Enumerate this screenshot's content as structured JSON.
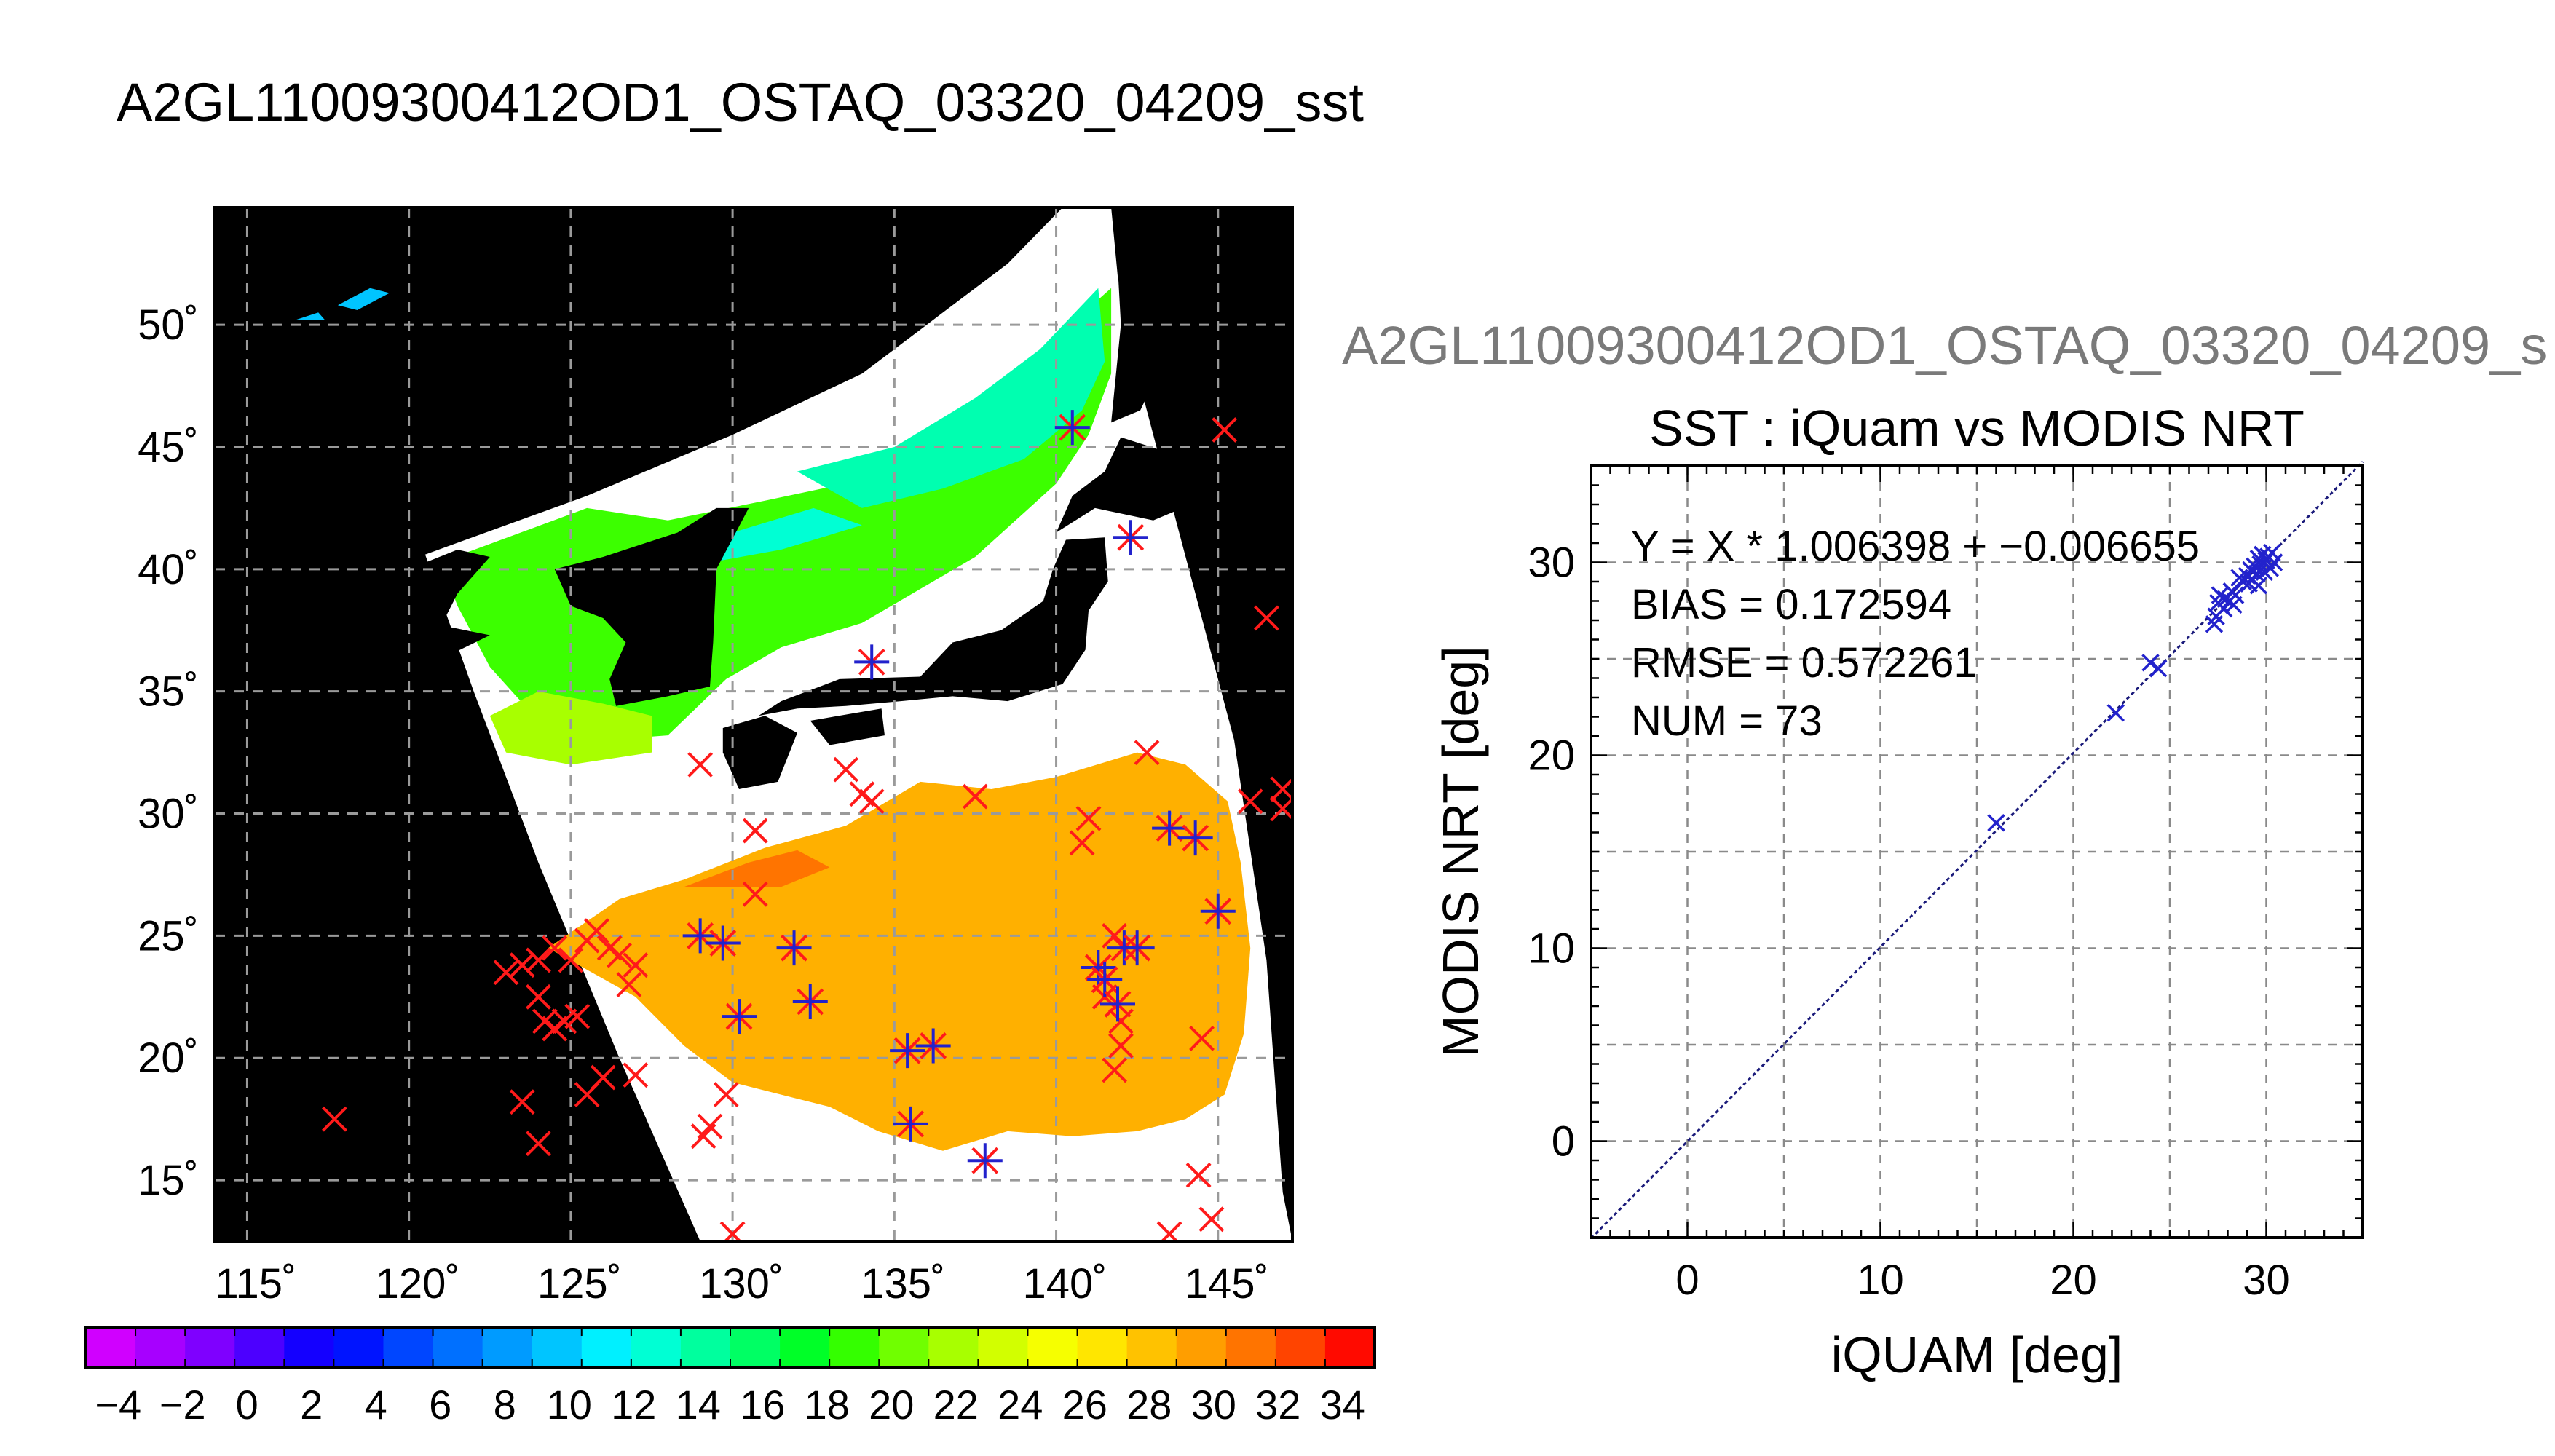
{
  "main_title": "A2GL11009300412OD1_OSTAQ_03320_04209_sst",
  "sub_title": "A2GL11009300412OD1_OSTAQ_03320_04209_s",
  "colors": {
    "land_and_no_data": "#000000",
    "cloud": "#ffffff",
    "iquam_marker": "#ff1a1a",
    "matched_marker": "#2222cc",
    "fit_line": "#1a1a7a"
  },
  "chart_data": [
    {
      "type": "map",
      "title": "",
      "lon_range": [
        114,
        147.3
      ],
      "lat_range": [
        12.5,
        54.8
      ],
      "lon_ticks": [
        115,
        120,
        125,
        130,
        135,
        140,
        145
      ],
      "lat_ticks": [
        15,
        20,
        25,
        30,
        35,
        40,
        45,
        50
      ],
      "lon_tick_labels": [
        "115˚",
        "120˚",
        "125˚",
        "130˚",
        "135˚",
        "140˚",
        "145˚"
      ],
      "lat_tick_labels": [
        "15˚",
        "20˚",
        "25˚",
        "30˚",
        "35˚",
        "40˚",
        "45˚",
        "50˚"
      ],
      "grid": true,
      "iquam_points": [
        [
          117.7,
          17.5
        ],
        [
          123.0,
          23.5
        ],
        [
          123.5,
          23.8
        ],
        [
          124.0,
          22.5
        ],
        [
          124.2,
          21.5
        ],
        [
          124.5,
          21.2
        ],
        [
          124.8,
          21.5
        ],
        [
          125.2,
          21.7
        ],
        [
          124.0,
          24.0
        ],
        [
          124.5,
          24.5
        ],
        [
          125.0,
          24.0
        ],
        [
          125.5,
          24.8
        ],
        [
          125.8,
          25.2
        ],
        [
          126.2,
          24.5
        ],
        [
          126.5,
          24.2
        ],
        [
          127.0,
          23.8
        ],
        [
          126.8,
          23.0
        ],
        [
          126.0,
          19.2
        ],
        [
          125.5,
          18.5
        ],
        [
          127.0,
          19.3
        ],
        [
          123.5,
          18.2
        ],
        [
          124.0,
          16.5
        ],
        [
          129.1,
          16.8
        ],
        [
          129.3,
          17.2
        ],
        [
          129.8,
          18.5
        ],
        [
          130.0,
          12.8
        ],
        [
          129.0,
          32.0
        ],
        [
          130.7,
          29.3
        ],
        [
          130.7,
          26.7
        ],
        [
          134.0,
          30.8
        ],
        [
          134.3,
          30.5
        ],
        [
          133.5,
          31.8
        ],
        [
          137.5,
          30.7
        ],
        [
          141.0,
          29.8
        ],
        [
          140.8,
          28.8
        ],
        [
          142.8,
          32.5
        ],
        [
          146.0,
          30.5
        ],
        [
          147.0,
          31.0
        ],
        [
          147.0,
          30.2
        ],
        [
          146.5,
          38.0
        ],
        [
          145.2,
          45.7
        ],
        [
          144.5,
          20.8
        ],
        [
          144.4,
          15.2
        ],
        [
          144.8,
          13.4
        ],
        [
          143.5,
          12.8
        ],
        [
          142.0,
          20.5
        ],
        [
          141.8,
          19.5
        ],
        [
          142.0,
          21.5
        ],
        [
          141.5,
          22.5
        ],
        [
          141.8,
          25.0
        ]
      ],
      "matched_points": [
        [
          129.0,
          25.0
        ],
        [
          129.7,
          24.7
        ],
        [
          130.2,
          21.7
        ],
        [
          131.9,
          24.5
        ],
        [
          132.4,
          22.3
        ],
        [
          134.3,
          36.2
        ],
        [
          135.4,
          20.3
        ],
        [
          136.2,
          20.5
        ],
        [
          135.5,
          17.3
        ],
        [
          137.8,
          15.8
        ],
        [
          140.5,
          45.8
        ],
        [
          142.3,
          41.3
        ],
        [
          141.3,
          23.7
        ],
        [
          141.5,
          23.2
        ],
        [
          142.1,
          24.5
        ],
        [
          142.5,
          24.5
        ],
        [
          141.9,
          22.2
        ],
        [
          143.5,
          29.4
        ],
        [
          144.3,
          29.0
        ],
        [
          145.0,
          26.0
        ]
      ]
    },
    {
      "type": "colorbar",
      "range": [
        -5,
        35
      ],
      "tick_labels": [
        "−4",
        "−2",
        "0",
        "2",
        "4",
        "6",
        "8",
        "10",
        "12",
        "14",
        "16",
        "18",
        "20",
        "22",
        "24",
        "26",
        "28",
        "30",
        "32",
        "34"
      ],
      "tick_values": [
        -4,
        -2,
        0,
        2,
        4,
        6,
        8,
        10,
        12,
        14,
        16,
        18,
        20,
        22,
        24,
        26,
        28,
        30,
        32,
        34
      ],
      "colors": [
        "#d000ff",
        "#a700ff",
        "#7f00ff",
        "#4c00ff",
        "#1400ff",
        "#0014ff",
        "#0046ff",
        "#0070ff",
        "#009bff",
        "#00c5ff",
        "#00f0ff",
        "#00ffd4",
        "#00ff9e",
        "#00ff64",
        "#00ff28",
        "#34ff00",
        "#70ff00",
        "#a8ff00",
        "#d2ff00",
        "#f6ff00",
        "#ffe600",
        "#ffc200",
        "#ff9e00",
        "#ff7400",
        "#ff4400",
        "#ff0a00"
      ]
    },
    {
      "type": "scatter",
      "title": "SST : iQuam vs MODIS NRT",
      "xlabel": "iQUAM [deg]",
      "ylabel": "MODIS NRT [deg]",
      "xlim": [
        -5,
        35
      ],
      "ylim": [
        -5,
        35
      ],
      "xticks": [
        0,
        10,
        20,
        30
      ],
      "yticks": [
        0,
        10,
        20,
        30
      ],
      "grid": true,
      "annotations": [
        "Y = X * 1.006398 + −0.006655",
        "BIAS = 0.172594",
        "RMSE = 0.572261",
        "NUM = 73"
      ],
      "fit": {
        "slope": 1.006398,
        "intercept": -0.006655
      },
      "points": [
        [
          16.0,
          16.5
        ],
        [
          22.2,
          22.2
        ],
        [
          24.0,
          24.8
        ],
        [
          24.4,
          24.5
        ],
        [
          27.3,
          26.8
        ],
        [
          27.4,
          27.2
        ],
        [
          27.5,
          27.9
        ],
        [
          27.6,
          28.3
        ],
        [
          27.8,
          27.6
        ],
        [
          27.9,
          28.1
        ],
        [
          28.1,
          28.0
        ],
        [
          28.2,
          28.5
        ],
        [
          28.3,
          27.8
        ],
        [
          28.4,
          28.3
        ],
        [
          28.6,
          29.2
        ],
        [
          28.8,
          29.0
        ],
        [
          29.0,
          29.3
        ],
        [
          29.1,
          28.9
        ],
        [
          29.2,
          29.6
        ],
        [
          29.3,
          29.1
        ],
        [
          29.4,
          29.8
        ],
        [
          29.5,
          29.4
        ],
        [
          29.6,
          30.2
        ],
        [
          29.6,
          28.8
        ],
        [
          29.7,
          29.9
        ],
        [
          29.8,
          30.4
        ],
        [
          29.9,
          29.5
        ],
        [
          30.0,
          30.1
        ],
        [
          30.1,
          30.3
        ],
        [
          30.2,
          29.7
        ],
        [
          30.3,
          30.5
        ],
        [
          30.4,
          30.0
        ]
      ]
    }
  ]
}
